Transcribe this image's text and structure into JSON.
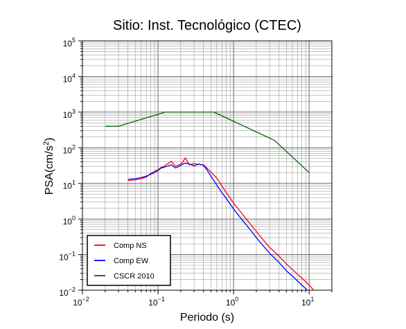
{
  "chart_data": {
    "type": "line",
    "title": "Sitio: Inst. Tecnológico (CTEC)",
    "xlabel": "Periodo (s)",
    "ylabel_base": "PSA(cm/s",
    "ylabel_exp": "2",
    "ylabel_close": ")",
    "xscale": "log",
    "yscale": "log",
    "xlim": [
      0.01,
      20
    ],
    "ylim": [
      0.01,
      100000
    ],
    "grid": true,
    "legend_position": "bottom-left",
    "x_ticks": [
      {
        "base": "10",
        "exp": "−2",
        "value": 0.01
      },
      {
        "base": "10",
        "exp": "−1",
        "value": 0.1
      },
      {
        "base": "10",
        "exp": "0",
        "value": 1
      },
      {
        "base": "10",
        "exp": "1",
        "value": 10
      }
    ],
    "y_ticks": [
      {
        "base": "10",
        "exp": "−2",
        "value": 0.01
      },
      {
        "base": "10",
        "exp": "−1",
        "value": 0.1
      },
      {
        "base": "10",
        "exp": "0",
        "value": 1
      },
      {
        "base": "10",
        "exp": "1",
        "value": 10
      },
      {
        "base": "10",
        "exp": "2",
        "value": 100
      },
      {
        "base": "10",
        "exp": "3",
        "value": 1000
      },
      {
        "base": "10",
        "exp": "4",
        "value": 10000
      },
      {
        "base": "10",
        "exp": "5",
        "value": 100000
      }
    ],
    "series": [
      {
        "name": "Comp NS",
        "color": "#ff0000",
        "x": [
          0.04,
          0.05,
          0.06,
          0.07,
          0.08,
          0.09,
          0.1,
          0.11,
          0.12,
          0.13,
          0.15,
          0.17,
          0.19,
          0.21,
          0.23,
          0.26,
          0.3,
          0.35,
          0.4,
          0.45,
          0.5,
          0.6,
          0.7,
          0.8,
          1.0,
          1.3,
          1.6,
          2.0,
          2.5,
          3.0,
          4.0,
          5.0,
          6.0,
          8.0,
          10.0,
          12.0,
          14.0
        ],
        "y": [
          12,
          12.5,
          13.5,
          15,
          19,
          22,
          24,
          28,
          30,
          34,
          42,
          30,
          33,
          38,
          52,
          33,
          36,
          34,
          33,
          26,
          21,
          14,
          8.5,
          5.5,
          2.8,
          1.4,
          0.8,
          0.45,
          0.25,
          0.16,
          0.09,
          0.055,
          0.038,
          0.022,
          0.014,
          0.009,
          0.0065
        ]
      },
      {
        "name": "Comp EW",
        "color": "#0000ff",
        "x": [
          0.04,
          0.05,
          0.06,
          0.07,
          0.08,
          0.09,
          0.1,
          0.11,
          0.12,
          0.13,
          0.15,
          0.17,
          0.19,
          0.21,
          0.23,
          0.26,
          0.3,
          0.35,
          0.4,
          0.45,
          0.5,
          0.6,
          0.7,
          0.8,
          1.0,
          1.3,
          1.6,
          2.0,
          2.5,
          3.0,
          4.0,
          5.0,
          6.0,
          8.0,
          10.0,
          12.0
        ],
        "y": [
          13,
          13.5,
          14.5,
          16,
          18,
          20,
          23,
          27,
          28,
          30,
          33,
          27,
          30,
          34,
          37,
          35,
          31,
          35,
          32,
          23,
          16,
          9,
          5.5,
          3.8,
          1.9,
          0.95,
          0.55,
          0.3,
          0.17,
          0.11,
          0.06,
          0.035,
          0.025,
          0.014,
          0.009,
          0.006
        ]
      },
      {
        "name": "CSCR 2010",
        "color": "#006400",
        "x": [
          0.02,
          0.03,
          0.125,
          0.55,
          3.5,
          10.0
        ],
        "y": [
          400,
          400,
          1000,
          1000,
          160,
          20
        ]
      }
    ]
  }
}
